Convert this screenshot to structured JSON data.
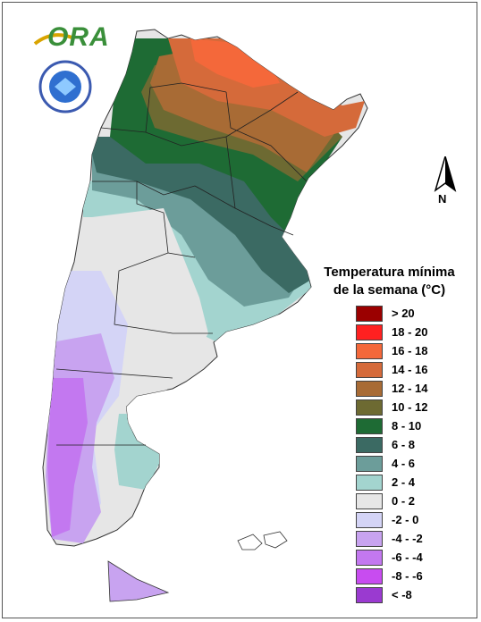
{
  "logo": {
    "text": "ORA"
  },
  "legend": {
    "title_line1": "Temperatura mínima",
    "title_line2": "de la semana (°C)",
    "items": [
      {
        "label": "> 20",
        "color": "#9b0000"
      },
      {
        "label": "18 - 20",
        "color": "#ff2020"
      },
      {
        "label": "16 - 18",
        "color": "#f4683a"
      },
      {
        "label": "14 - 16",
        "color": "#d56a3a"
      },
      {
        "label": "12 - 14",
        "color": "#a86b35"
      },
      {
        "label": "10 - 12",
        "color": "#6d6a32"
      },
      {
        "label": "8 - 10",
        "color": "#1e6b34"
      },
      {
        "label": "6 - 8",
        "color": "#3b6a63"
      },
      {
        "label": "4 - 6",
        "color": "#6c9d9a"
      },
      {
        "label": "2 - 4",
        "color": "#a3d4cf"
      },
      {
        "label": "0 - 2",
        "color": "#e6e6e6"
      },
      {
        "label": "-2 - 0",
        "color": "#d4d4f6"
      },
      {
        "label": "-4 - -2",
        "color": "#c8a3f0"
      },
      {
        "label": "-6 - -4",
        "color": "#c378f0"
      },
      {
        "label": "-8 - -6",
        "color": "#c84cf0"
      },
      {
        "label": "< -8",
        "color": "#9a3ad0"
      }
    ]
  },
  "compass": {
    "label": "N"
  }
}
